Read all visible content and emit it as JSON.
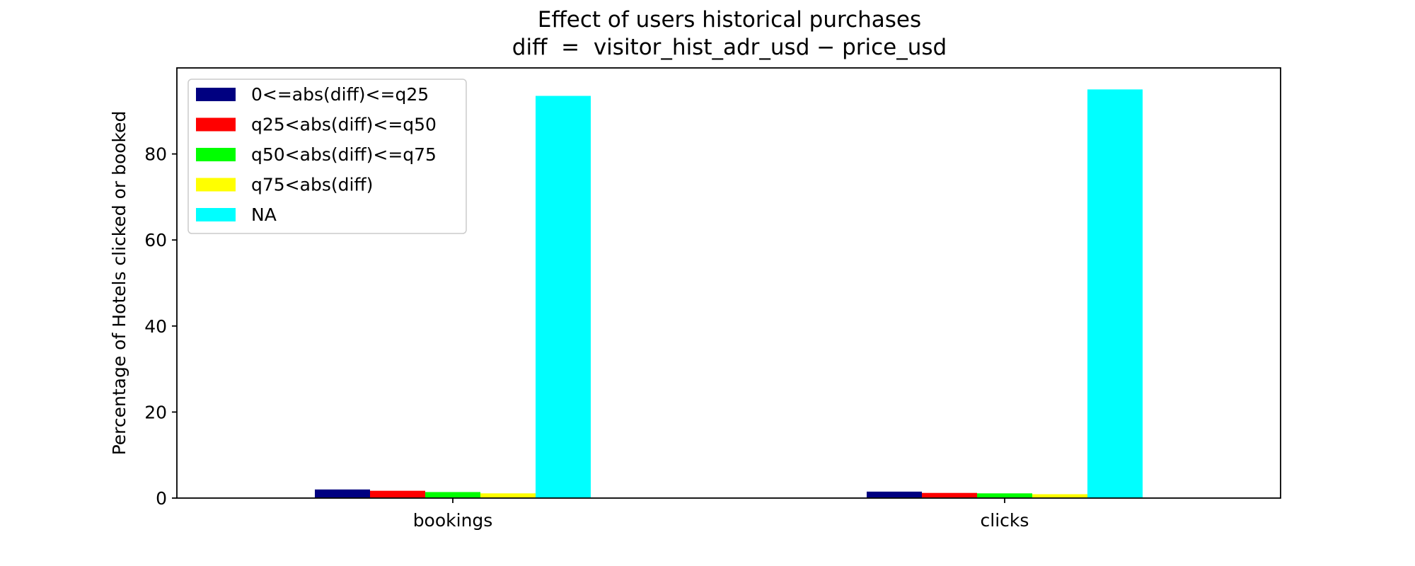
{
  "chart_data": {
    "type": "bar",
    "title": "Effect of users historical purchases",
    "subtitle": "diff  =  visitor_hist_adr_usd − price_usd",
    "xlabel": "",
    "ylabel": "Percentage of Hotels clicked or booked",
    "categories": [
      "bookings",
      "clicks"
    ],
    "ylim": [
      0,
      100
    ],
    "yticks": [
      0,
      20,
      40,
      60,
      80
    ],
    "grid": false,
    "legend_position": "top-left",
    "series": [
      {
        "name": "0<=abs(diff)<=q25",
        "color": "#000080",
        "values": [
          2.0,
          1.5
        ]
      },
      {
        "name": "q25<abs(diff)<=q50",
        "color": "#ff0000",
        "values": [
          1.7,
          1.2
        ]
      },
      {
        "name": "q50<abs(diff)<=q75",
        "color": "#00ff00",
        "values": [
          1.4,
          1.1
        ]
      },
      {
        "name": "q75<abs(diff)",
        "color": "#ffff00",
        "values": [
          1.1,
          0.9
        ]
      },
      {
        "name": "NA",
        "color": "#00ffff",
        "values": [
          93.5,
          95.0
        ]
      }
    ]
  }
}
